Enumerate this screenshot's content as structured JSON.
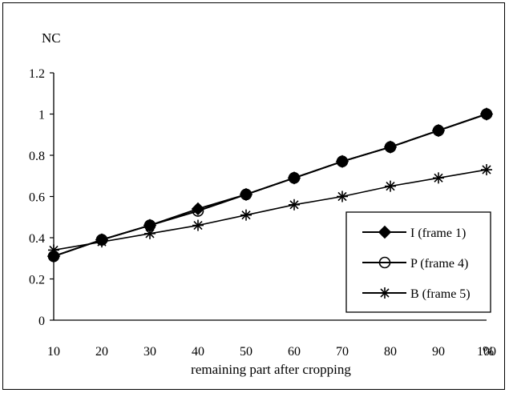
{
  "chart_data": {
    "type": "line",
    "title": "",
    "ylabel": "NC",
    "xlabel": "remaining part after cropping",
    "x_unit": "%",
    "x": [
      10,
      20,
      30,
      40,
      50,
      60,
      70,
      80,
      90,
      100
    ],
    "xlim": [
      10,
      100
    ],
    "ylim": [
      0,
      1.2
    ],
    "yticks": [
      0,
      0.2,
      0.4,
      0.6,
      0.8,
      1,
      1.2
    ],
    "xticks": [
      10,
      20,
      30,
      40,
      50,
      60,
      70,
      80,
      90,
      100
    ],
    "grid": false,
    "legend_position": "bottom-right",
    "series": [
      {
        "name": "I (frame 1)",
        "marker": "diamond-filled",
        "values": [
          0.31,
          0.39,
          0.46,
          0.54,
          0.61,
          0.69,
          0.77,
          0.84,
          0.92,
          1.0
        ]
      },
      {
        "name": "P (frame 4)",
        "marker": "circle-open",
        "values": [
          0.31,
          0.39,
          0.46,
          0.53,
          0.61,
          0.69,
          0.77,
          0.84,
          0.92,
          1.0
        ]
      },
      {
        "name": "B (frame 5)",
        "marker": "asterisk",
        "values": [
          0.34,
          0.38,
          0.42,
          0.46,
          0.51,
          0.56,
          0.6,
          0.65,
          0.69,
          0.73
        ]
      }
    ]
  }
}
